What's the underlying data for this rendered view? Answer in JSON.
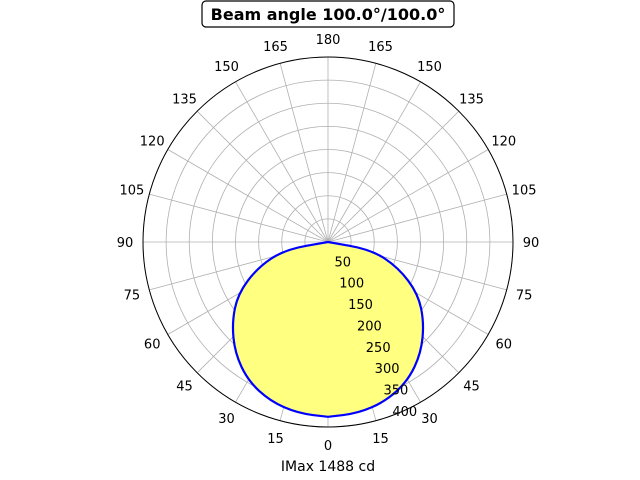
{
  "chart_data": {
    "type": "polar",
    "title": "Beam angle 100.0°/100.0°",
    "xlabel": "IMax 1488 cd",
    "angle_ticks": [
      "180",
      "165",
      "150",
      "135",
      "120",
      "105",
      "90",
      "75",
      "60",
      "45",
      "30",
      "15",
      "0",
      "15",
      "30",
      "45",
      "60",
      "75",
      "90",
      "105",
      "120",
      "135",
      "150",
      "165"
    ],
    "radial_ticks": [
      50,
      100,
      150,
      200,
      250,
      300,
      350,
      400
    ],
    "rmax": 400,
    "grid": true,
    "series": [
      {
        "fill_color": "#ffff80",
        "line_color": "#0000ff",
        "angles_deg": [
          0,
          10,
          20,
          30,
          40,
          50,
          60,
          70,
          80,
          90
        ],
        "values": [
          378,
          376,
          366,
          346,
          313,
          271,
          225,
          162,
          95,
          0
        ]
      }
    ]
  }
}
